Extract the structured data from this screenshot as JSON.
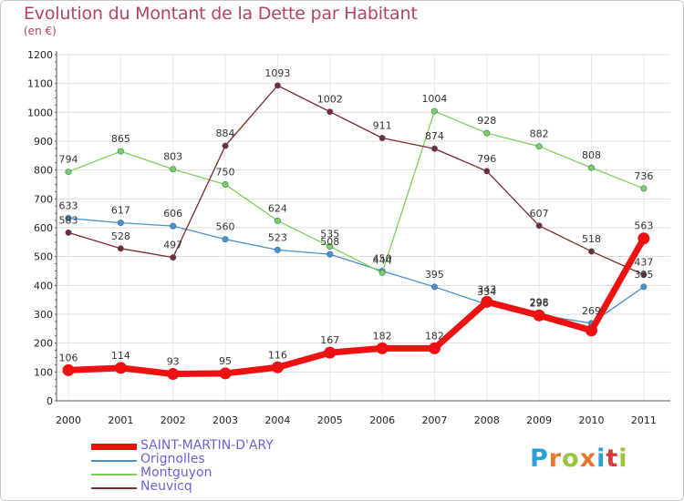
{
  "title": "Evolution du Montant de la Dette par Habitant",
  "subtitle": "(en €)",
  "logo": {
    "text": "Proxiti",
    "colors": [
      "#2a9fd8",
      "#e8772e",
      "#9ac43a",
      "#e8772e",
      "#2a9fd8",
      "#d83a3a",
      "#9ac43a"
    ]
  },
  "chart_data": {
    "type": "line",
    "x": [
      "2000",
      "2001",
      "2002",
      "2003",
      "2004",
      "2005",
      "2006",
      "2007",
      "2008",
      "2009",
      "2010",
      "2011"
    ],
    "ylim": [
      0,
      1200
    ],
    "yticks": [
      "0",
      "100",
      "200",
      "300",
      "400",
      "500",
      "600",
      "700",
      "800",
      "900",
      "1000",
      "1100",
      "1200"
    ],
    "grid": true,
    "legend_position": "bottom-left",
    "series": [
      {
        "name": "SAINT-MARTIN-D'ARY",
        "color": "#ee1111",
        "values": [
          106,
          114,
          93,
          95,
          116,
          167,
          182,
          182,
          343,
          296,
          244,
          563
        ],
        "labels": [
          "106",
          "114",
          "93",
          "95",
          "116",
          "167",
          "182",
          "182",
          "343",
          "296",
          "",
          "563"
        ]
      },
      {
        "name": "Orignolles",
        "color": "#4a90c8",
        "values": [
          633,
          617,
          606,
          560,
          523,
          508,
          450,
          395,
          334,
          298,
          269,
          395
        ],
        "labels": [
          "633",
          "617",
          "606",
          "560",
          "523",
          "508",
          "450",
          "395",
          "334",
          "298",
          "269",
          "395"
        ]
      },
      {
        "name": "Montguyon",
        "color": "#7cd05a",
        "values": [
          794,
          865,
          803,
          750,
          624,
          535,
          444,
          1004,
          928,
          882,
          808,
          736
        ],
        "labels": [
          "794",
          "865",
          "803",
          "750",
          "624",
          "535",
          "444",
          "1004",
          "928",
          "882",
          "808",
          "736"
        ]
      },
      {
        "name": "Neuvicq",
        "color": "#7a2a2a",
        "values": [
          583,
          528,
          497,
          884,
          1093,
          1002,
          911,
          874,
          796,
          607,
          518,
          437
        ],
        "labels": [
          "583",
          "528",
          "497",
          "884",
          "1093",
          "1002",
          "911",
          "874",
          "796",
          "607",
          "518",
          "437"
        ]
      }
    ]
  }
}
